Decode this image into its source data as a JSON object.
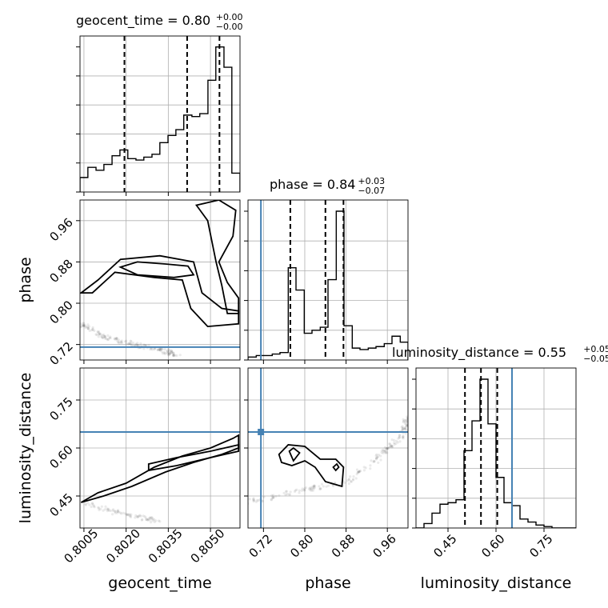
{
  "colors": {
    "truth": "#4682b4",
    "line": "#000000",
    "grid": "#b0b0b0"
  },
  "chart_data": {
    "type": "corner",
    "parameters": [
      "geocent_time",
      "phase",
      "luminosity_distance"
    ],
    "axis_labels": {
      "geocent_time": "geocent_time",
      "phase": "phase",
      "luminosity_distance": "luminosity_distance"
    },
    "titles": [
      {
        "param": "geocent_time",
        "prefix": "geocent_time = 0.80",
        "plus": "+0.00",
        "minus": "−0.00"
      },
      {
        "param": "phase",
        "prefix": "phase = 0.84",
        "plus": "+0.03",
        "minus": "−0.07"
      },
      {
        "param": "luminosity_distance",
        "prefix": "luminosity_distance = 0.55",
        "plus": "+0.05",
        "minus": "−0.05"
      }
    ],
    "ranges": {
      "geocent_time": [
        0.80036,
        0.80605
      ],
      "phase": [
        0.69,
        1.0
      ],
      "luminosity_distance": [
        0.35,
        0.85
      ]
    },
    "ticks": {
      "geocent_time": [
        "0.8005",
        "0.8020",
        "0.8035",
        "0.8050"
      ],
      "phase": [
        "0.72",
        "0.80",
        "0.88",
        "0.96"
      ],
      "luminosity_distance": [
        "0.45",
        "0.60",
        "0.75"
      ]
    },
    "truths": {
      "phase": 0.715,
      "luminosity_distance": 0.65
    },
    "quantiles": {
      "geocent_time": [
        0.80194,
        0.80417,
        0.80532
      ],
      "phase": [
        0.772,
        0.84,
        0.875
      ],
      "luminosity_distance": [
        0.503,
        0.553,
        0.604
      ]
    },
    "histograms": {
      "geocent_time": {
        "edges": [
          0.80036,
          0.80064,
          0.80093,
          0.80121,
          0.8015,
          0.80178,
          0.80206,
          0.80235,
          0.80263,
          0.80292,
          0.8032,
          0.80349,
          0.80377,
          0.80405,
          0.80434,
          0.80462,
          0.80491,
          0.80519,
          0.80548,
          0.80576,
          0.80605
        ],
        "counts": [
          0.1,
          0.17,
          0.15,
          0.19,
          0.25,
          0.29,
          0.23,
          0.22,
          0.24,
          0.26,
          0.34,
          0.39,
          0.43,
          0.53,
          0.52,
          0.54,
          0.77,
          1.0,
          0.86,
          0.13
        ]
      },
      "phase": {
        "edges": [
          0.69,
          0.706,
          0.721,
          0.737,
          0.752,
          0.768,
          0.783,
          0.799,
          0.814,
          0.83,
          0.845,
          0.861,
          0.876,
          0.892,
          0.907,
          0.923,
          0.938,
          0.954,
          0.969,
          0.985,
          1.0
        ],
        "counts": [
          0.02,
          0.03,
          0.03,
          0.04,
          0.05,
          0.62,
          0.47,
          0.18,
          0.2,
          0.22,
          0.54,
          1.0,
          0.23,
          0.08,
          0.07,
          0.08,
          0.09,
          0.11,
          0.16,
          0.12
        ]
      },
      "luminosity_distance": {
        "edges": [
          0.35,
          0.375,
          0.4,
          0.425,
          0.45,
          0.475,
          0.5,
          0.525,
          0.55,
          0.575,
          0.6,
          0.625,
          0.65,
          0.675,
          0.7,
          0.725,
          0.75,
          0.775,
          0.8,
          0.825,
          0.85
        ],
        "counts": [
          0.0,
          0.03,
          0.1,
          0.16,
          0.17,
          0.19,
          0.52,
          0.72,
          1.0,
          0.7,
          0.34,
          0.17,
          0.15,
          0.06,
          0.04,
          0.02,
          0.01,
          0.0,
          0.0,
          0.0
        ]
      }
    },
    "contours": {
      "phase_vs_geocent_time": [
        [
          [
            0.8018,
            0.87
          ],
          [
            0.8024,
            0.88
          ],
          [
            0.8034,
            0.876
          ],
          [
            0.8042,
            0.872
          ],
          [
            0.8044,
            0.855
          ],
          [
            0.8037,
            0.85
          ],
          [
            0.8024,
            0.855
          ],
          [
            0.8018,
            0.87
          ]
        ],
        [
          [
            0.8004,
            0.82
          ],
          [
            0.801,
            0.845
          ],
          [
            0.8018,
            0.885
          ],
          [
            0.8032,
            0.892
          ],
          [
            0.8044,
            0.88
          ],
          [
            0.8047,
            0.82
          ],
          [
            0.8054,
            0.79
          ],
          [
            0.806,
            0.785
          ],
          [
            0.806,
            0.76
          ],
          [
            0.8049,
            0.755
          ],
          [
            0.8043,
            0.79
          ],
          [
            0.804,
            0.845
          ],
          [
            0.803,
            0.85
          ],
          [
            0.8016,
            0.86
          ],
          [
            0.8008,
            0.82
          ],
          [
            0.8004,
            0.82
          ]
        ],
        [
          [
            0.8045,
            0.99
          ],
          [
            0.8053,
            1.0
          ],
          [
            0.8059,
            0.98
          ],
          [
            0.8058,
            0.93
          ],
          [
            0.8053,
            0.88
          ],
          [
            0.8056,
            0.84
          ],
          [
            0.806,
            0.81
          ],
          [
            0.806,
            0.78
          ],
          [
            0.8056,
            0.78
          ],
          [
            0.8054,
            0.835
          ],
          [
            0.8052,
            0.88
          ],
          [
            0.8049,
            0.96
          ],
          [
            0.8045,
            0.99
          ]
        ]
      ],
      "luminosity_distance_vs_geocent_time": [
        [
          [
            0.8028,
            0.55
          ],
          [
            0.8038,
            0.57
          ],
          [
            0.805,
            0.59
          ],
          [
            0.806,
            0.61
          ],
          [
            0.806,
            0.59
          ],
          [
            0.805,
            0.57
          ],
          [
            0.8038,
            0.545
          ],
          [
            0.8028,
            0.53
          ],
          [
            0.8028,
            0.55
          ]
        ],
        [
          [
            0.8004,
            0.43
          ],
          [
            0.801,
            0.46
          ],
          [
            0.802,
            0.49
          ],
          [
            0.803,
            0.54
          ],
          [
            0.804,
            0.575
          ],
          [
            0.805,
            0.6
          ],
          [
            0.8058,
            0.63
          ],
          [
            0.806,
            0.64
          ],
          [
            0.806,
            0.6
          ],
          [
            0.8054,
            0.58
          ],
          [
            0.8044,
            0.555
          ],
          [
            0.8034,
            0.525
          ],
          [
            0.8022,
            0.48
          ],
          [
            0.8012,
            0.45
          ],
          [
            0.8004,
            0.43
          ]
        ]
      ],
      "luminosity_distance_vs_phase": [
        [
          [
            0.855,
            0.54
          ],
          [
            0.862,
            0.55
          ],
          [
            0.866,
            0.54
          ],
          [
            0.86,
            0.53
          ],
          [
            0.855,
            0.54
          ]
        ],
        [
          [
            0.77,
            0.59
          ],
          [
            0.778,
            0.6
          ],
          [
            0.79,
            0.585
          ],
          [
            0.778,
            0.56
          ],
          [
            0.77,
            0.59
          ]
        ],
        [
          [
            0.75,
            0.58
          ],
          [
            0.768,
            0.61
          ],
          [
            0.8,
            0.605
          ],
          [
            0.83,
            0.565
          ],
          [
            0.86,
            0.565
          ],
          [
            0.875,
            0.54
          ],
          [
            0.872,
            0.48
          ],
          [
            0.84,
            0.495
          ],
          [
            0.82,
            0.54
          ],
          [
            0.8,
            0.56
          ],
          [
            0.775,
            0.545
          ],
          [
            0.755,
            0.555
          ],
          [
            0.75,
            0.58
          ]
        ]
      ]
    },
    "scatter_paths": {
      "phase_vs_geocent_time": [
        [
          0.8004,
          0.76
        ],
        [
          0.8012,
          0.735
        ],
        [
          0.8022,
          0.72
        ],
        [
          0.8032,
          0.71
        ],
        [
          0.8038,
          0.7
        ]
      ],
      "luminosity_distance_vs_geocent_time": [
        [
          0.8004,
          0.43
        ],
        [
          0.802,
          0.39
        ],
        [
          0.8032,
          0.37
        ]
      ],
      "luminosity_distance_vs_phase": [
        [
          0.69,
          0.43
        ],
        [
          0.8,
          0.47
        ],
        [
          0.88,
          0.49
        ],
        [
          0.95,
          0.58
        ],
        [
          0.99,
          0.64
        ],
        [
          1.0,
          0.7
        ]
      ]
    }
  }
}
